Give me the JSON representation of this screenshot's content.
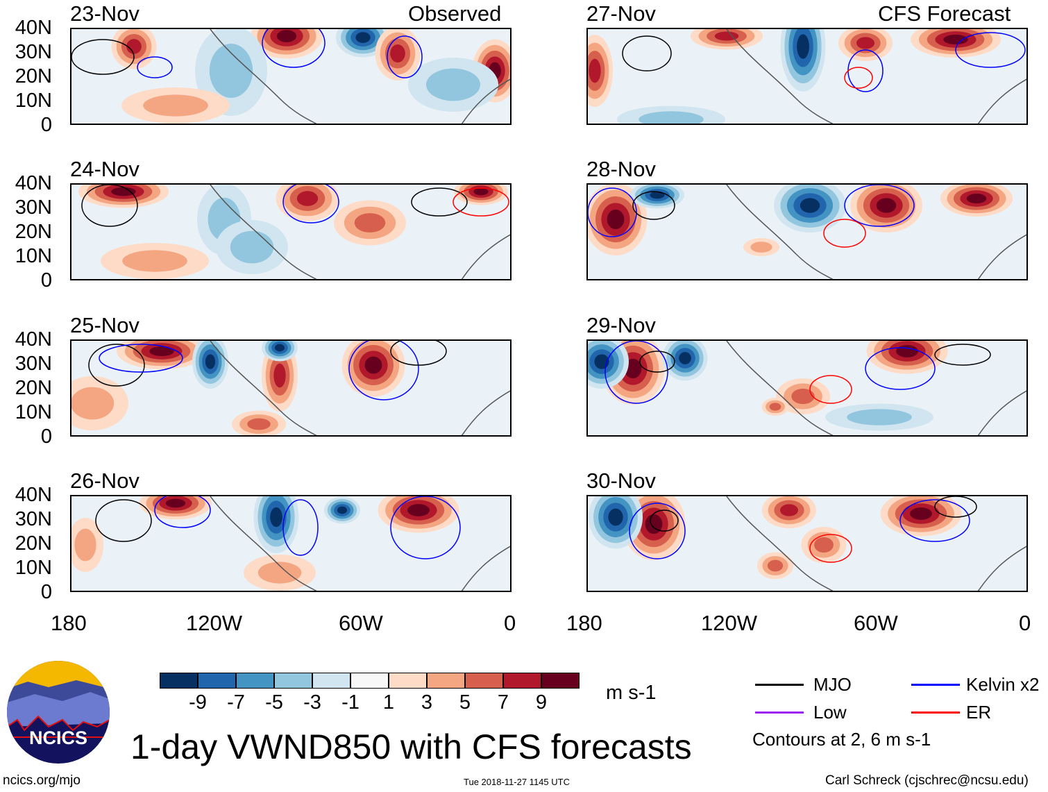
{
  "headers": {
    "left": "Observed",
    "right": "CFS Forecast"
  },
  "panels": [
    {
      "date": "23-Nov"
    },
    {
      "date": "24-Nov"
    },
    {
      "date": "25-Nov"
    },
    {
      "date": "26-Nov"
    },
    {
      "date": "27-Nov"
    },
    {
      "date": "28-Nov"
    },
    {
      "date": "29-Nov"
    },
    {
      "date": "30-Nov"
    }
  ],
  "lat_labels": [
    "40N",
    "30N",
    "20N",
    "10N",
    "0"
  ],
  "lon_labels": [
    "180",
    "120W",
    "60W",
    "0"
  ],
  "colorbar": {
    "colors": [
      "#053061",
      "#2166ac",
      "#4393c3",
      "#92c5de",
      "#d1e5f0",
      "#f7f7f7",
      "#fddbc7",
      "#f4a582",
      "#d6604d",
      "#b2182b",
      "#67001f"
    ],
    "labels": [
      "-9",
      "-7",
      "-5",
      "-3",
      "-1",
      "1",
      "3",
      "5",
      "7",
      "9"
    ],
    "units": "m s-1"
  },
  "legend": {
    "items": [
      {
        "label": "MJO",
        "color": "#000000"
      },
      {
        "label": "Kelvin x2",
        "color": "#0000ff"
      },
      {
        "label": "Low",
        "color": "#a020f0"
      },
      {
        "label": "ER",
        "color": "#ff0000"
      }
    ],
    "note": "Contours at 2, 6 m s-1"
  },
  "title": "1-day VWND850 with CFS forecasts",
  "logo_text": "NCICS",
  "footer": {
    "url": "ncics.org/mjo",
    "timestamp": "Tue 2018-11-27 1145 UTC",
    "author": "Carl Schreck (cjschrec@ncsu.edu)"
  }
}
